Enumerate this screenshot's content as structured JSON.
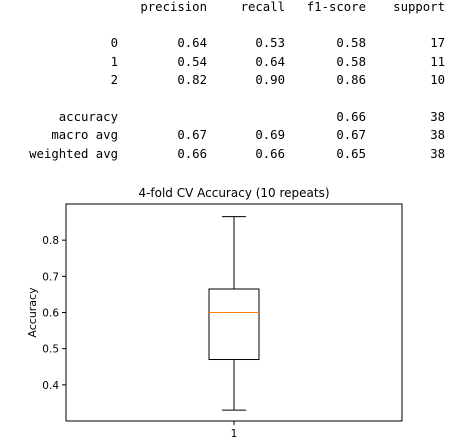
{
  "report": {
    "headers": [
      "precision",
      "recall",
      "f1-score",
      "support"
    ],
    "class_rows": [
      {
        "label": "0",
        "precision": "0.64",
        "recall": "0.53",
        "f1": "0.58",
        "support": "17"
      },
      {
        "label": "1",
        "precision": "0.54",
        "recall": "0.64",
        "f1": "0.58",
        "support": "11"
      },
      {
        "label": "2",
        "precision": "0.82",
        "recall": "0.90",
        "f1": "0.86",
        "support": "10"
      }
    ],
    "summary_rows": [
      {
        "label": "accuracy",
        "precision": "",
        "recall": "",
        "f1": "0.66",
        "support": "38"
      },
      {
        "label": "macro avg",
        "precision": "0.67",
        "recall": "0.69",
        "f1": "0.67",
        "support": "38"
      },
      {
        "label": "weighted avg",
        "precision": "0.66",
        "recall": "0.66",
        "f1": "0.65",
        "support": "38"
      }
    ]
  },
  "chart_data": {
    "type": "box",
    "title": "4-fold CV Accuracy (10 repeats)",
    "xlabel": "",
    "ylabel": "Accuracy",
    "categories": [
      "1"
    ],
    "boxes": [
      {
        "whisker_low": 0.33,
        "q1": 0.47,
        "median": 0.6,
        "q3": 0.665,
        "whisker_high": 0.865
      }
    ],
    "ylim": [
      0.3,
      0.9
    ],
    "yticks": [
      0.4,
      0.5,
      0.6,
      0.7,
      0.8
    ],
    "ytick_labels": [
      "0.4",
      "0.5",
      "0.6",
      "0.7",
      "0.8"
    ],
    "grid": false,
    "colors": {
      "box": "#000000",
      "median": "#ff7f0e"
    }
  }
}
